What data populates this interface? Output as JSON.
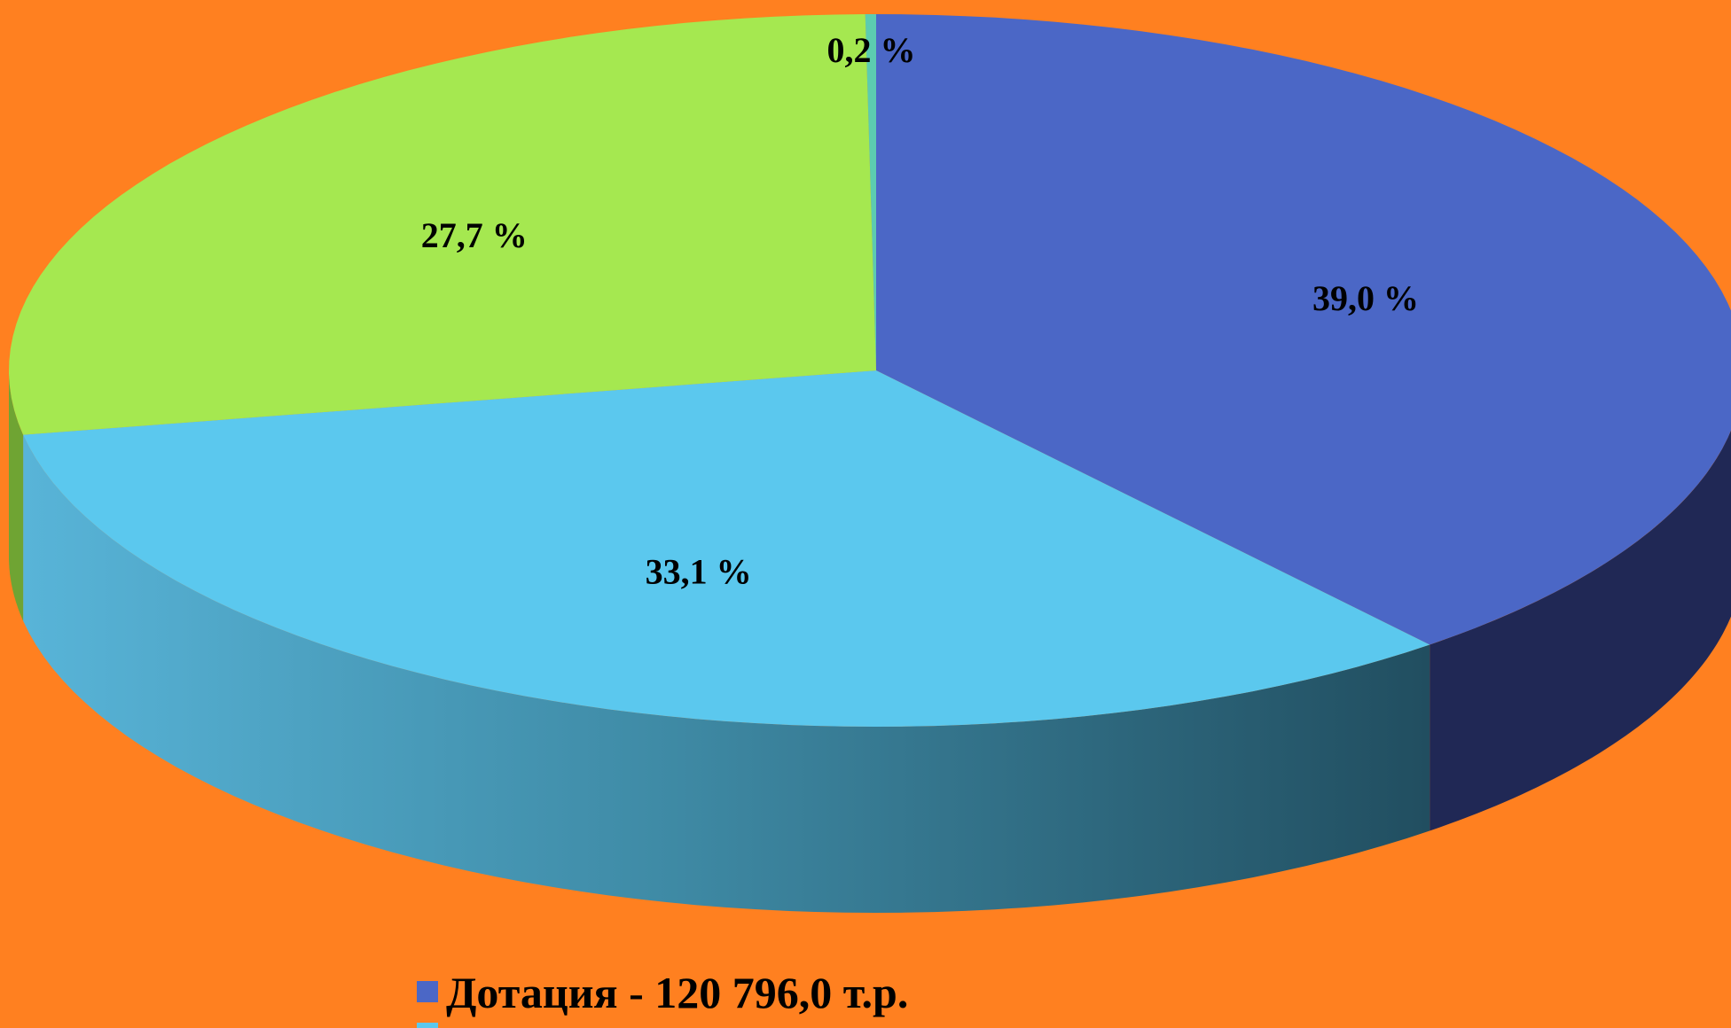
{
  "chart_data": {
    "type": "pie",
    "style": "3d",
    "background": "#FF8020",
    "slices": [
      {
        "label": "Дотация",
        "legend_text": "Дотация  -  120 796,0 т.р.",
        "value": 120796.0,
        "percent_label": "39,0 %",
        "color": "#4B67C6",
        "side_color": "#202855"
      },
      {
        "label": "",
        "legend_text": "",
        "value": 102650.0,
        "percent_label": "33,1 %",
        "color": "#5BC8EE",
        "side_color": "#3E95B0"
      },
      {
        "label": "",
        "legend_text": "",
        "value": 85800.0,
        "percent_label": "27,7 %",
        "color": "#A5E850",
        "side_color": "#6FA433"
      },
      {
        "label": "",
        "legend_text": "",
        "value": 620.0,
        "percent_label": "0,2 %",
        "color": "#5CCCB0",
        "side_color": "#3F8F7B"
      }
    ]
  }
}
